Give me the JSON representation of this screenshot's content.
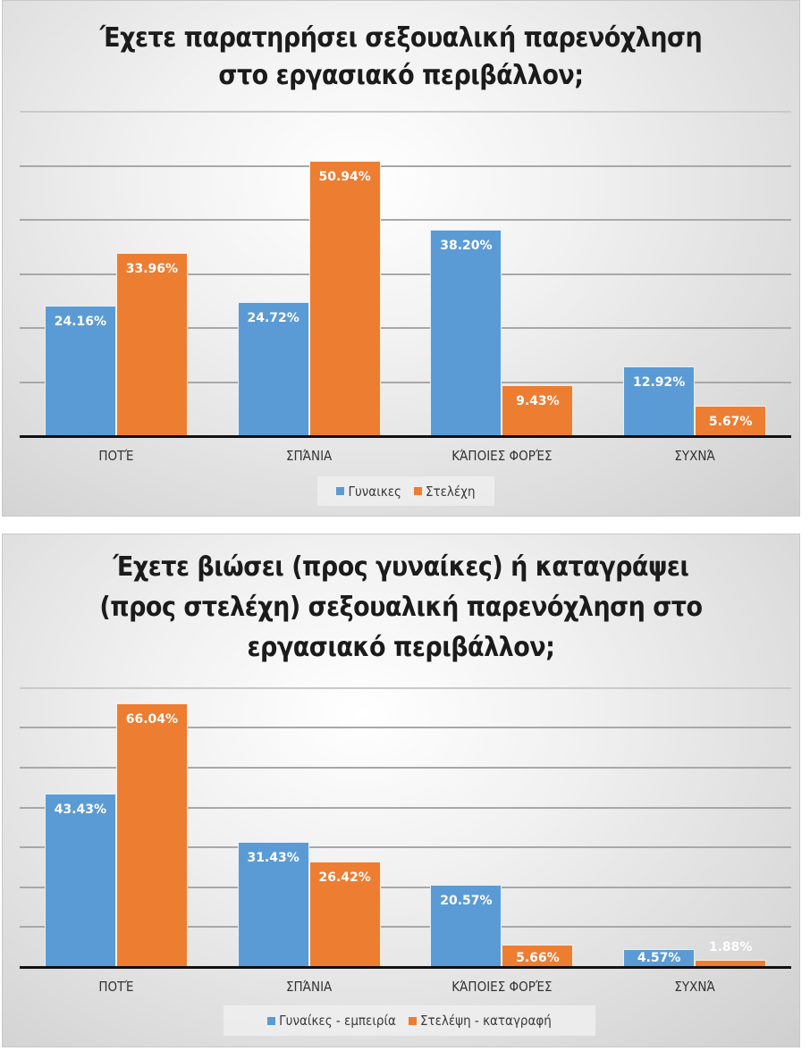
{
  "chart_data": [
    {
      "type": "bar",
      "title": "Έχετε παρατηρήσει σεξουαλική παρενόχληση στο εργασιακό περιβάλλον;",
      "title_lines": [
        "Έχετε παρατηρήσει σεξουαλική παρενόχληση",
        "στο εργασιακό περιβάλλον;"
      ],
      "categories": [
        "ΠΟΤΈ",
        "ΣΠΆΝΙΑ",
        "ΚΆΠΟΙΕΣ ΦΟΡΈΣ",
        "ΣΥΧΝΆ"
      ],
      "series": [
        {
          "name": "Γυναικες",
          "color": "#5b9bd5",
          "values": [
            24.16,
            24.72,
            38.2,
            12.92
          ],
          "labels": [
            "24.16%",
            "24.72%",
            "38.20%",
            "12.92%"
          ]
        },
        {
          "name": "Στελέχη",
          "color": "#ed7d31",
          "values": [
            33.96,
            50.94,
            9.43,
            5.67
          ],
          "labels": [
            "33.96%",
            "50.94%",
            "9.43%",
            "5.67%"
          ]
        }
      ],
      "xlabel": "",
      "ylabel": "",
      "ylim": [
        0,
        60
      ],
      "grid": true,
      "gridline_step": 10,
      "y_tick_labels_shown": false,
      "legend_position": "bottom"
    },
    {
      "type": "bar",
      "title": "Έχετε βιώσει (προς γυναίκες) ή καταγράψει (προς στελέχη) σεξουαλική παρενόχληση  στο εργασιακό περιβάλλον;",
      "title_lines": [
        "Έχετε βιώσει (προς γυναίκες) ή καταγράψει",
        "(προς στελέχη) σεξουαλική παρενόχληση  στο",
        "εργασιακό περιβάλλον;"
      ],
      "categories": [
        "ΠΟΤΈ",
        "ΣΠΆΝΙΑ",
        "ΚΆΠΟΙΕΣ ΦΟΡΈΣ",
        "ΣΥΧΝΆ"
      ],
      "series": [
        {
          "name": "Γυναίκες - εμπειρία",
          "color": "#5b9bd5",
          "values": [
            43.43,
            31.43,
            20.57,
            4.57
          ],
          "labels": [
            "43.43%",
            "31.43%",
            "20.57%",
            "4.57%"
          ]
        },
        {
          "name": "Στελέψη - καταγραφή",
          "color": "#ed7d31",
          "values": [
            66.04,
            26.42,
            5.66,
            1.88
          ],
          "labels": [
            "66.04%",
            "26.42%",
            "5.66%",
            "1.88%"
          ]
        }
      ],
      "xlabel": "",
      "ylabel": "",
      "ylim": [
        0,
        70
      ],
      "grid": true,
      "gridline_step": 10,
      "y_tick_labels_shown": false,
      "legend_position": "bottom"
    }
  ]
}
